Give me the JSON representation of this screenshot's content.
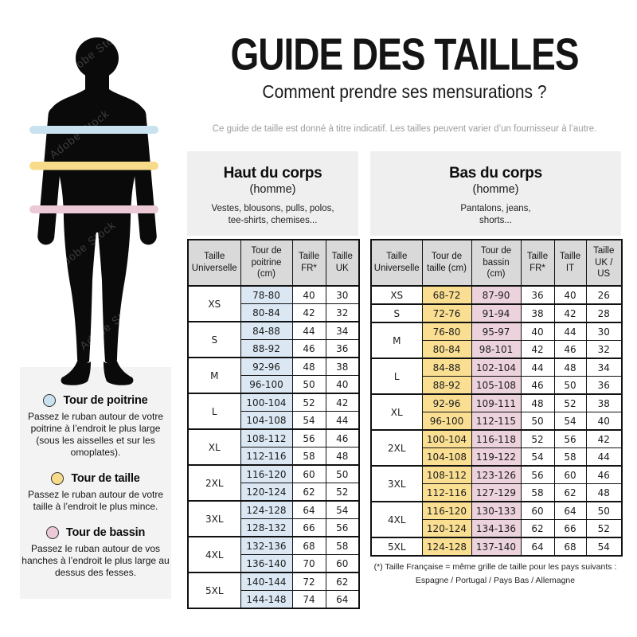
{
  "header": {
    "title": "GUIDE DES TAILLES",
    "subtitle": "Comment prendre ses mensurations ?",
    "disclaimer": "Ce guide de taille est donné à titre indicatif. Les tailles peuvent varier d’un fournisseur à l’autre."
  },
  "watermark": "Adobe Stock",
  "colors": {
    "chest_band": "#c8e2ef",
    "waist_band": "#f8db8a",
    "hips_band": "#ecc9d6",
    "chest_cell": "#dbe8f4",
    "waist_cell": "#fadf92",
    "hips_cell": "#ecd2dc",
    "header_cell": "#d9d9d9",
    "silhouette": "#0a0a0a"
  },
  "legend": [
    {
      "band": "chest",
      "title": "Tour de poitrine",
      "text": "Passez le ruban autour de votre poitrine à l’endroit le plus large (sous les aisselles et sur les omoplates)."
    },
    {
      "band": "waist",
      "title": "Tour de taille",
      "text": "Passez le ruban autour de votre taille à l’endroit le plus mince."
    },
    {
      "band": "hips",
      "title": "Tour de bassin",
      "text": "Passez le ruban autour de vos hanches à l’endroit le plus large au dessus des fesses."
    }
  ],
  "upper_table": {
    "title": "Haut du corps",
    "subtitle": "(homme)",
    "desc_line1": "Vestes, blousons, pulls, polos,",
    "desc_line2": "tee-shirts, chemises...",
    "columns": [
      "Taille Universelle",
      "Tour de poitrine (cm)",
      "Taille FR*",
      "Taille UK"
    ],
    "highlight": [
      "chest"
    ],
    "groups": [
      {
        "size": "XS",
        "rows": [
          [
            "78-80",
            "40",
            "30"
          ],
          [
            "80-84",
            "42",
            "32"
          ]
        ]
      },
      {
        "size": "S",
        "rows": [
          [
            "84-88",
            "44",
            "34"
          ],
          [
            "88-92",
            "46",
            "36"
          ]
        ]
      },
      {
        "size": "M",
        "rows": [
          [
            "92-96",
            "48",
            "38"
          ],
          [
            "96-100",
            "50",
            "40"
          ]
        ]
      },
      {
        "size": "L",
        "rows": [
          [
            "100-104",
            "52",
            "42"
          ],
          [
            "104-108",
            "54",
            "44"
          ]
        ]
      },
      {
        "size": "XL",
        "rows": [
          [
            "108-112",
            "56",
            "46"
          ],
          [
            "112-116",
            "58",
            "48"
          ]
        ]
      },
      {
        "size": "2XL",
        "rows": [
          [
            "116-120",
            "60",
            "50"
          ],
          [
            "120-124",
            "62",
            "52"
          ]
        ]
      },
      {
        "size": "3XL",
        "rows": [
          [
            "124-128",
            "64",
            "54"
          ],
          [
            "128-132",
            "66",
            "56"
          ]
        ]
      },
      {
        "size": "4XL",
        "rows": [
          [
            "132-136",
            "68",
            "58"
          ],
          [
            "136-140",
            "70",
            "60"
          ]
        ]
      },
      {
        "size": "5XL",
        "rows": [
          [
            "140-144",
            "72",
            "62"
          ],
          [
            "144-148",
            "74",
            "64"
          ]
        ]
      }
    ]
  },
  "lower_table": {
    "title": "Bas du corps",
    "subtitle": "(homme)",
    "desc_line1": "Pantalons, jeans,",
    "desc_line2": "shorts...",
    "columns": [
      "Taille Universelle",
      "Tour de taille (cm)",
      "Tour de bassin (cm)",
      "Taille FR*",
      "Taille IT",
      "Taille UK / US"
    ],
    "highlight": [
      "waist",
      "hips"
    ],
    "groups": [
      {
        "size": "XS",
        "rows": [
          [
            "68-72",
            "87-90",
            "36",
            "40",
            "26"
          ]
        ]
      },
      {
        "size": "S",
        "rows": [
          [
            "72-76",
            "91-94",
            "38",
            "42",
            "28"
          ]
        ]
      },
      {
        "size": "M",
        "rows": [
          [
            "76-80",
            "95-97",
            "40",
            "44",
            "30"
          ],
          [
            "80-84",
            "98-101",
            "42",
            "46",
            "32"
          ]
        ]
      },
      {
        "size": "L",
        "rows": [
          [
            "84-88",
            "102-104",
            "44",
            "48",
            "34"
          ],
          [
            "88-92",
            "105-108",
            "46",
            "50",
            "36"
          ]
        ]
      },
      {
        "size": "XL",
        "rows": [
          [
            "92-96",
            "109-111",
            "48",
            "52",
            "38"
          ],
          [
            "96-100",
            "112-115",
            "50",
            "54",
            "40"
          ]
        ]
      },
      {
        "size": "2XL",
        "rows": [
          [
            "100-104",
            "116-118",
            "52",
            "56",
            "42"
          ],
          [
            "104-108",
            "119-122",
            "54",
            "58",
            "44"
          ]
        ]
      },
      {
        "size": "3XL",
        "rows": [
          [
            "108-112",
            "123-126",
            "56",
            "60",
            "46"
          ],
          [
            "112-116",
            "127-129",
            "58",
            "62",
            "48"
          ]
        ]
      },
      {
        "size": "4XL",
        "rows": [
          [
            "116-120",
            "130-133",
            "60",
            "64",
            "50"
          ],
          [
            "120-124",
            "134-136",
            "62",
            "66",
            "52"
          ]
        ]
      },
      {
        "size": "5XL",
        "rows": [
          [
            "124-128",
            "137-140",
            "64",
            "68",
            "54"
          ]
        ]
      }
    ]
  },
  "footnote": {
    "line1": "(*) Taille Française = même grille de taille pour les pays suivants :",
    "line2": "Espagne / Portugal / Pays Bas / Allemagne"
  }
}
